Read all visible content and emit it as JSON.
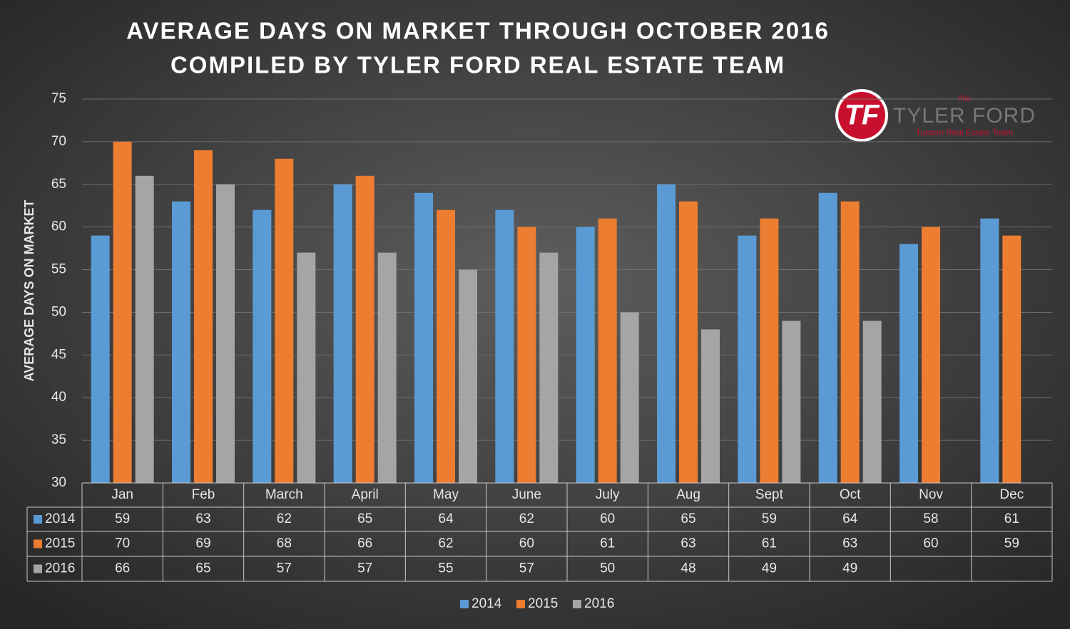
{
  "chart_data": {
    "type": "bar",
    "title": "AVERAGE DAYS ON MARKET THROUGH OCTOBER 2016",
    "subtitle": "COMPILED BY TYLER FORD REAL ESTATE TEAM",
    "y_label": "AVERAGE DAYS ON MARKET",
    "categories": [
      "Jan",
      "Feb",
      "March",
      "April",
      "May",
      "June",
      "July",
      "Aug",
      "Sept",
      "Oct",
      "Nov",
      "Dec"
    ],
    "series": [
      {
        "name": "2014",
        "color": "#5b9bd5",
        "values": [
          59,
          63,
          62,
          65,
          64,
          62,
          60,
          65,
          59,
          64,
          58,
          61
        ]
      },
      {
        "name": "2015",
        "color": "#ed7d31",
        "values": [
          70,
          69,
          68,
          66,
          62,
          60,
          61,
          63,
          61,
          63,
          60,
          59
        ]
      },
      {
        "name": "2016",
        "color": "#a5a5a5",
        "values": [
          66,
          65,
          57,
          57,
          55,
          57,
          50,
          48,
          49,
          49,
          null,
          null
        ]
      }
    ],
    "ylim": [
      30,
      75
    ],
    "yticks": [
      30,
      35,
      40,
      45,
      50,
      55,
      60,
      65,
      70,
      75
    ],
    "grid": true,
    "legend": "bottom",
    "logo": {
      "mark": "TF",
      "small": "The",
      "name": "TYLER FORD",
      "tagline": "Tucson Real Estate Team"
    }
  }
}
